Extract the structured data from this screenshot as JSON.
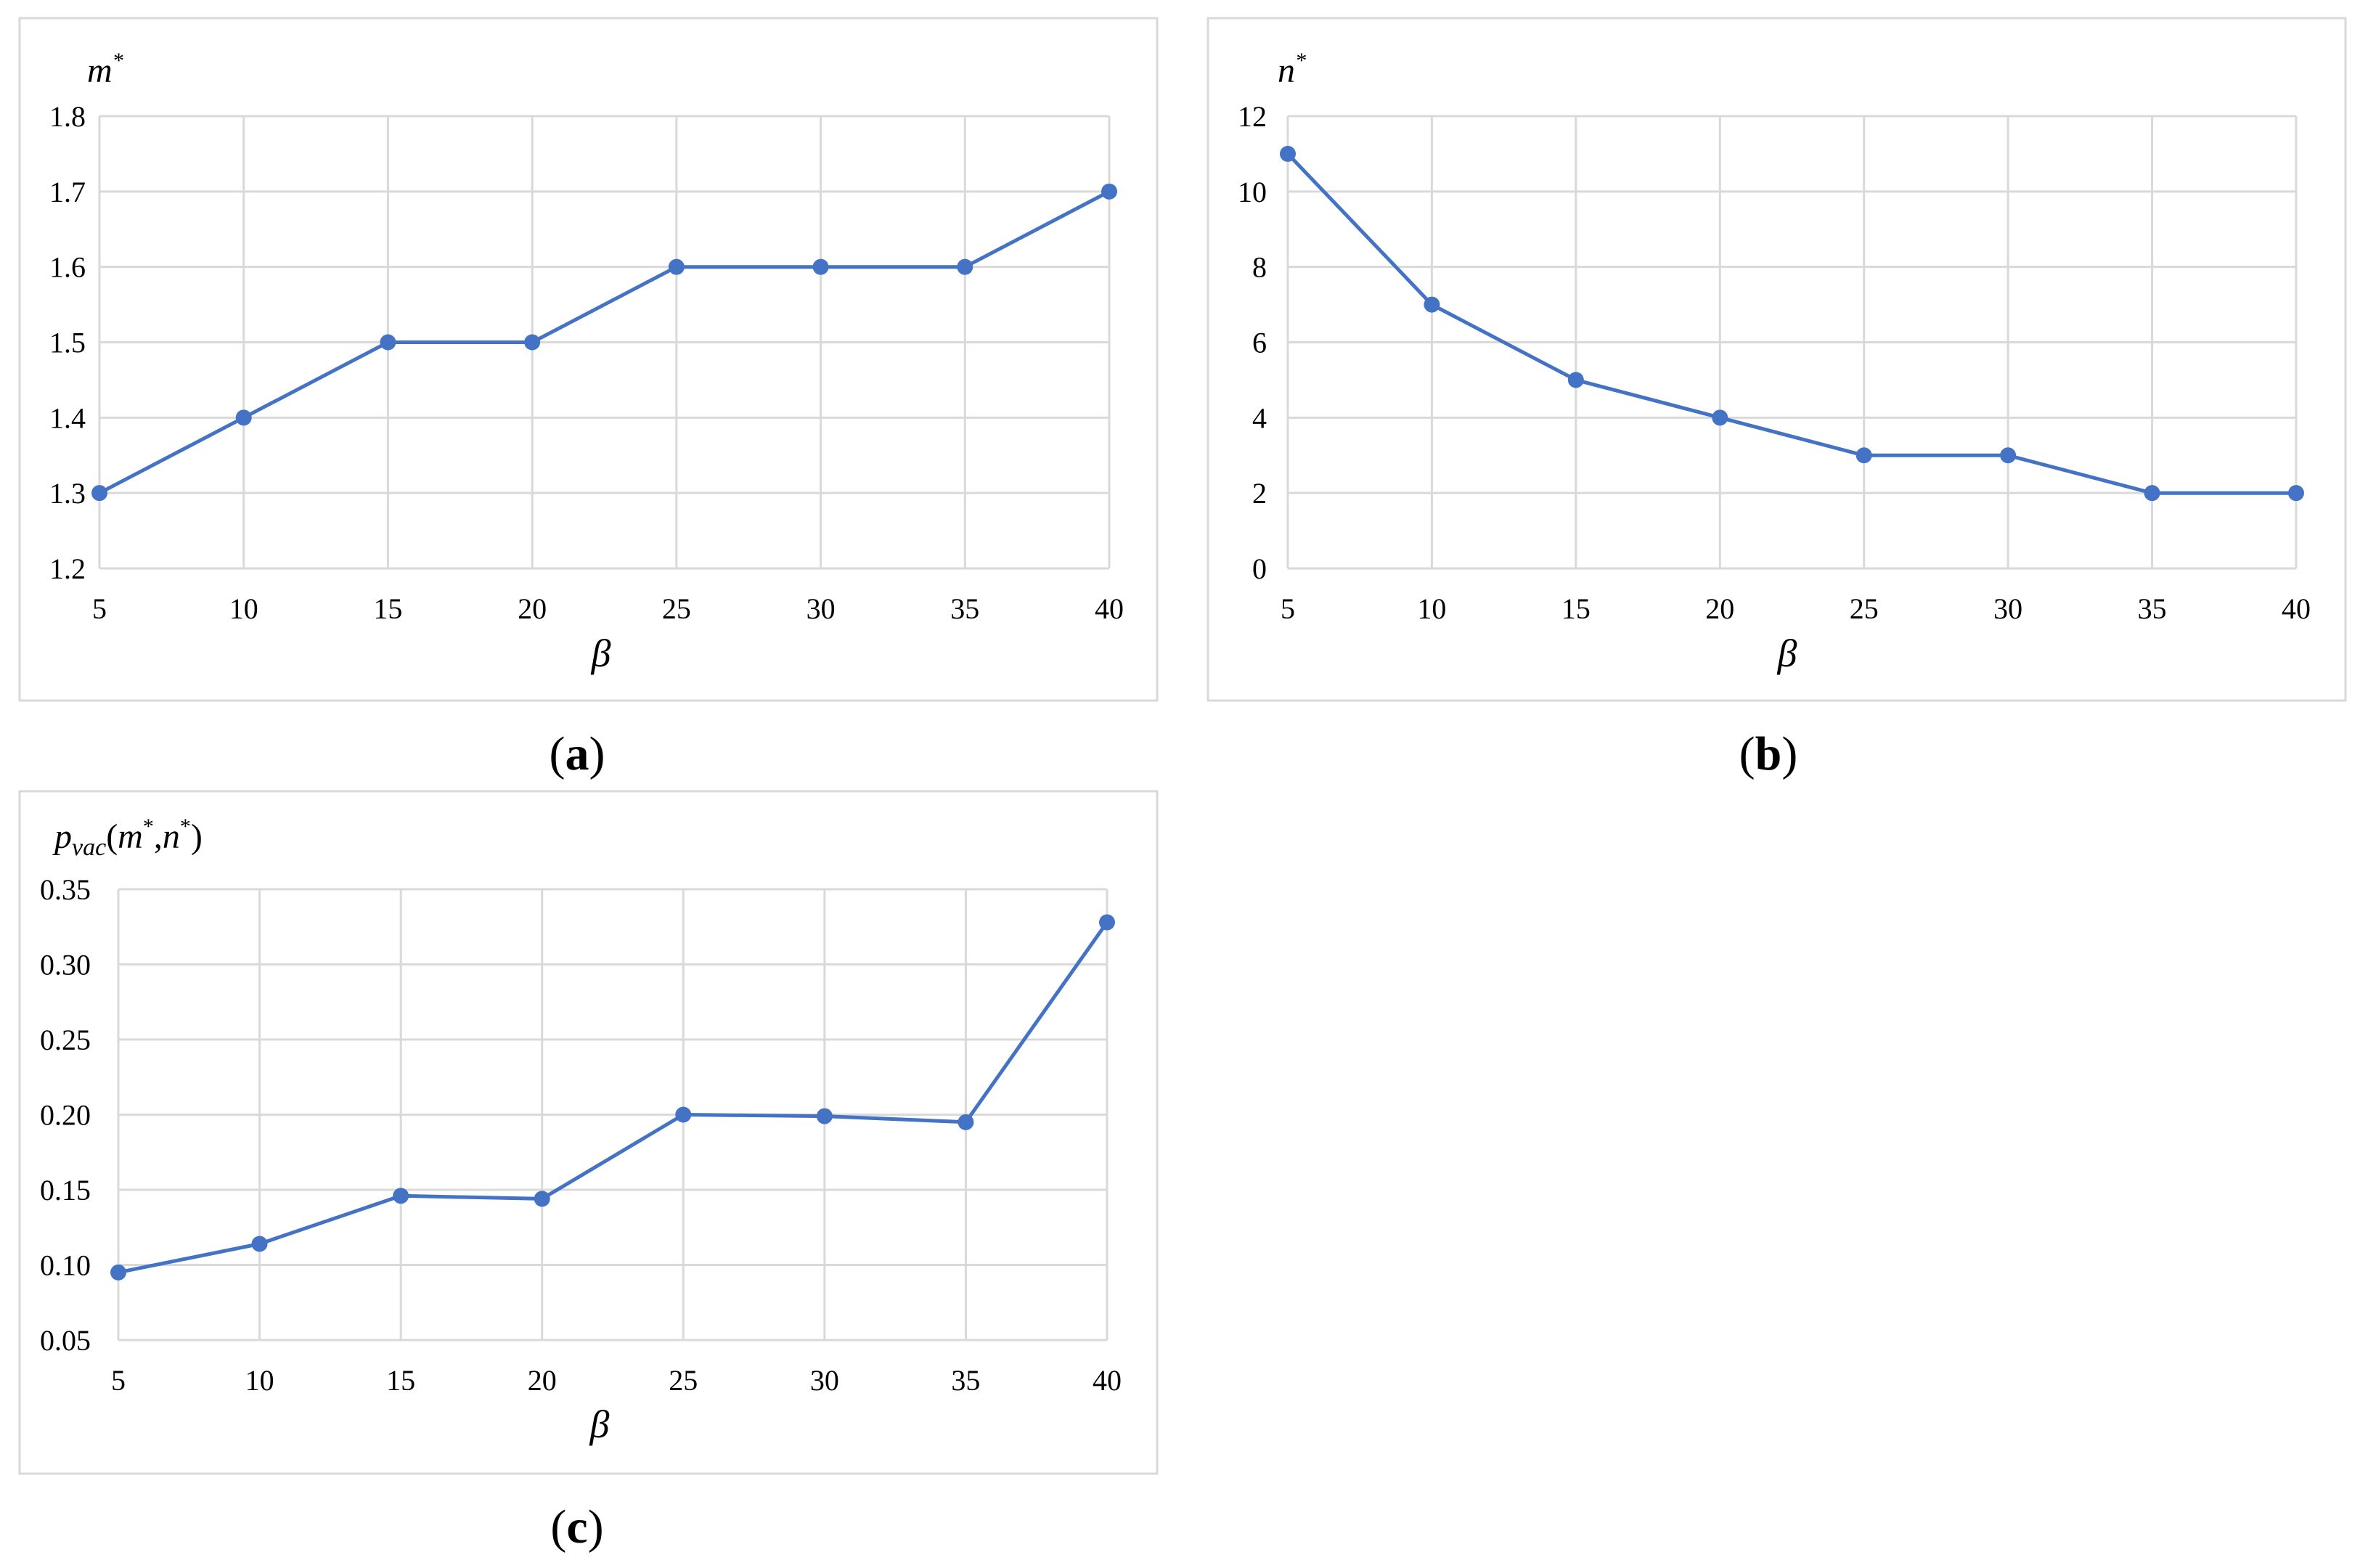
{
  "series_color": "#4472c4",
  "grid_color": "#d9d9d9",
  "chart_data": [
    {
      "type": "line",
      "panel_label": "(a)",
      "ylabel": "m*",
      "xlabel": "β",
      "x": [
        5,
        10,
        15,
        20,
        25,
        30,
        35,
        40
      ],
      "x_tick_labels": [
        "5",
        "10",
        "15",
        "20",
        "25",
        "30",
        "35",
        "40"
      ],
      "y_tick_labels": [
        "1.2",
        "1.3",
        "1.4",
        "1.5",
        "1.6",
        "1.7",
        "1.8"
      ],
      "ylim": [
        1.2,
        1.8
      ],
      "grid": true,
      "series": [
        {
          "values": [
            1.3,
            1.4,
            1.5,
            1.5,
            1.6,
            1.6,
            1.6,
            1.7
          ]
        }
      ]
    },
    {
      "type": "line",
      "panel_label": "(b)",
      "ylabel": "n*",
      "xlabel": "β",
      "x": [
        5,
        10,
        15,
        20,
        25,
        30,
        35,
        40
      ],
      "x_tick_labels": [
        "5",
        "10",
        "15",
        "20",
        "25",
        "30",
        "35",
        "40"
      ],
      "y_tick_labels": [
        "0",
        "2",
        "4",
        "6",
        "8",
        "10",
        "12"
      ],
      "ylim": [
        0,
        12
      ],
      "grid": true,
      "series": [
        {
          "values": [
            11,
            7,
            5,
            4,
            3,
            3,
            2,
            2
          ]
        }
      ]
    },
    {
      "type": "line",
      "panel_label": "(c)",
      "ylabel": "pvac(m*,n*)",
      "xlabel": "β",
      "x": [
        5,
        10,
        15,
        20,
        25,
        30,
        35,
        40
      ],
      "x_tick_labels": [
        "5",
        "10",
        "15",
        "20",
        "25",
        "30",
        "35",
        "40"
      ],
      "y_tick_labels": [
        "0.05",
        "0.10",
        "0.15",
        "0.20",
        "0.25",
        "0.30",
        "0.35"
      ],
      "ylim": [
        0.05,
        0.35
      ],
      "grid": true,
      "series": [
        {
          "values": [
            0.095,
            0.114,
            0.146,
            0.144,
            0.2,
            0.199,
            0.195,
            0.328
          ]
        }
      ]
    }
  ]
}
